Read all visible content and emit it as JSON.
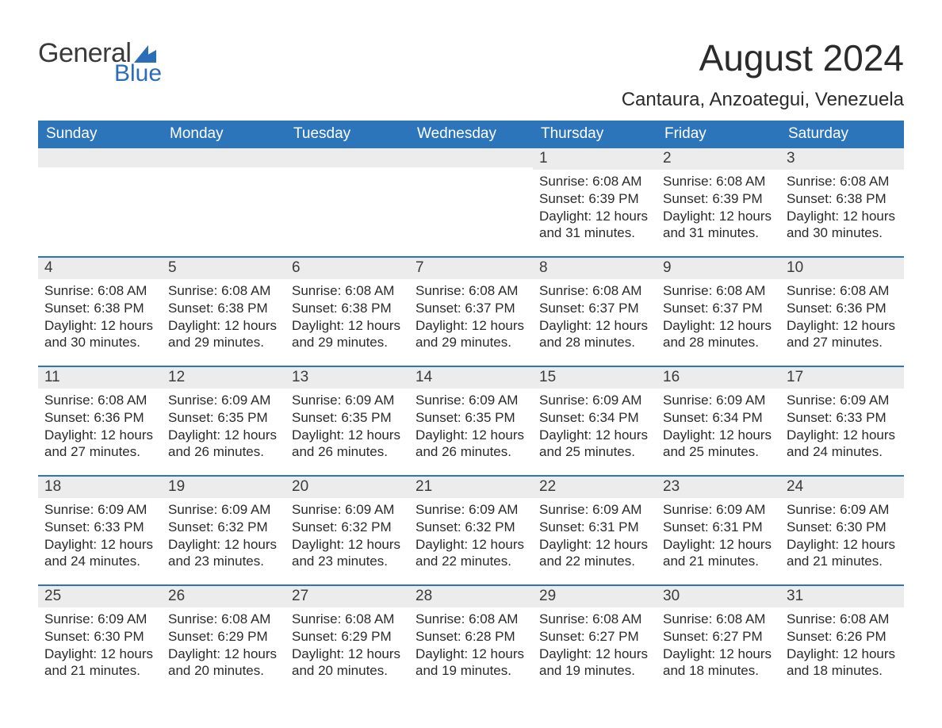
{
  "logo": {
    "text_general": "General",
    "text_blue": "Blue",
    "icon_color": "#2a6db8"
  },
  "title": "August 2024",
  "location": "Cantaura, Anzoategui, Venezuela",
  "colors": {
    "header_bg": "#2d75bb",
    "header_text": "#ffffff",
    "daynum_bg": "#ececec",
    "daynum_text": "#3b3b3b",
    "body_text": "#2b2b2b",
    "week_divider": "#2d75bb",
    "page_bg": "#ffffff"
  },
  "typography": {
    "title_fontsize": 46,
    "location_fontsize": 24,
    "dayheader_fontsize": 19,
    "daynum_fontsize": 19,
    "body_fontsize": 17
  },
  "day_headers": [
    "Sunday",
    "Monday",
    "Tuesday",
    "Wednesday",
    "Thursday",
    "Friday",
    "Saturday"
  ],
  "weeks": [
    [
      {
        "empty": true
      },
      {
        "empty": true
      },
      {
        "empty": true
      },
      {
        "empty": true
      },
      {
        "num": "1",
        "sunrise": "6:08 AM",
        "sunset": "6:39 PM",
        "daylight": "12 hours and 31 minutes."
      },
      {
        "num": "2",
        "sunrise": "6:08 AM",
        "sunset": "6:39 PM",
        "daylight": "12 hours and 31 minutes."
      },
      {
        "num": "3",
        "sunrise": "6:08 AM",
        "sunset": "6:38 PM",
        "daylight": "12 hours and 30 minutes."
      }
    ],
    [
      {
        "num": "4",
        "sunrise": "6:08 AM",
        "sunset": "6:38 PM",
        "daylight": "12 hours and 30 minutes."
      },
      {
        "num": "5",
        "sunrise": "6:08 AM",
        "sunset": "6:38 PM",
        "daylight": "12 hours and 29 minutes."
      },
      {
        "num": "6",
        "sunrise": "6:08 AM",
        "sunset": "6:38 PM",
        "daylight": "12 hours and 29 minutes."
      },
      {
        "num": "7",
        "sunrise": "6:08 AM",
        "sunset": "6:37 PM",
        "daylight": "12 hours and 29 minutes."
      },
      {
        "num": "8",
        "sunrise": "6:08 AM",
        "sunset": "6:37 PM",
        "daylight": "12 hours and 28 minutes."
      },
      {
        "num": "9",
        "sunrise": "6:08 AM",
        "sunset": "6:37 PM",
        "daylight": "12 hours and 28 minutes."
      },
      {
        "num": "10",
        "sunrise": "6:08 AM",
        "sunset": "6:36 PM",
        "daylight": "12 hours and 27 minutes."
      }
    ],
    [
      {
        "num": "11",
        "sunrise": "6:08 AM",
        "sunset": "6:36 PM",
        "daylight": "12 hours and 27 minutes."
      },
      {
        "num": "12",
        "sunrise": "6:09 AM",
        "sunset": "6:35 PM",
        "daylight": "12 hours and 26 minutes."
      },
      {
        "num": "13",
        "sunrise": "6:09 AM",
        "sunset": "6:35 PM",
        "daylight": "12 hours and 26 minutes."
      },
      {
        "num": "14",
        "sunrise": "6:09 AM",
        "sunset": "6:35 PM",
        "daylight": "12 hours and 26 minutes."
      },
      {
        "num": "15",
        "sunrise": "6:09 AM",
        "sunset": "6:34 PM",
        "daylight": "12 hours and 25 minutes."
      },
      {
        "num": "16",
        "sunrise": "6:09 AM",
        "sunset": "6:34 PM",
        "daylight": "12 hours and 25 minutes."
      },
      {
        "num": "17",
        "sunrise": "6:09 AM",
        "sunset": "6:33 PM",
        "daylight": "12 hours and 24 minutes."
      }
    ],
    [
      {
        "num": "18",
        "sunrise": "6:09 AM",
        "sunset": "6:33 PM",
        "daylight": "12 hours and 24 minutes."
      },
      {
        "num": "19",
        "sunrise": "6:09 AM",
        "sunset": "6:32 PM",
        "daylight": "12 hours and 23 minutes."
      },
      {
        "num": "20",
        "sunrise": "6:09 AM",
        "sunset": "6:32 PM",
        "daylight": "12 hours and 23 minutes."
      },
      {
        "num": "21",
        "sunrise": "6:09 AM",
        "sunset": "6:32 PM",
        "daylight": "12 hours and 22 minutes."
      },
      {
        "num": "22",
        "sunrise": "6:09 AM",
        "sunset": "6:31 PM",
        "daylight": "12 hours and 22 minutes."
      },
      {
        "num": "23",
        "sunrise": "6:09 AM",
        "sunset": "6:31 PM",
        "daylight": "12 hours and 21 minutes."
      },
      {
        "num": "24",
        "sunrise": "6:09 AM",
        "sunset": "6:30 PM",
        "daylight": "12 hours and 21 minutes."
      }
    ],
    [
      {
        "num": "25",
        "sunrise": "6:09 AM",
        "sunset": "6:30 PM",
        "daylight": "12 hours and 21 minutes."
      },
      {
        "num": "26",
        "sunrise": "6:08 AM",
        "sunset": "6:29 PM",
        "daylight": "12 hours and 20 minutes."
      },
      {
        "num": "27",
        "sunrise": "6:08 AM",
        "sunset": "6:29 PM",
        "daylight": "12 hours and 20 minutes."
      },
      {
        "num": "28",
        "sunrise": "6:08 AM",
        "sunset": "6:28 PM",
        "daylight": "12 hours and 19 minutes."
      },
      {
        "num": "29",
        "sunrise": "6:08 AM",
        "sunset": "6:27 PM",
        "daylight": "12 hours and 19 minutes."
      },
      {
        "num": "30",
        "sunrise": "6:08 AM",
        "sunset": "6:27 PM",
        "daylight": "12 hours and 18 minutes."
      },
      {
        "num": "31",
        "sunrise": "6:08 AM",
        "sunset": "6:26 PM",
        "daylight": "12 hours and 18 minutes."
      }
    ]
  ],
  "labels": {
    "sunrise": "Sunrise:",
    "sunset": "Sunset:",
    "daylight": "Daylight:"
  }
}
